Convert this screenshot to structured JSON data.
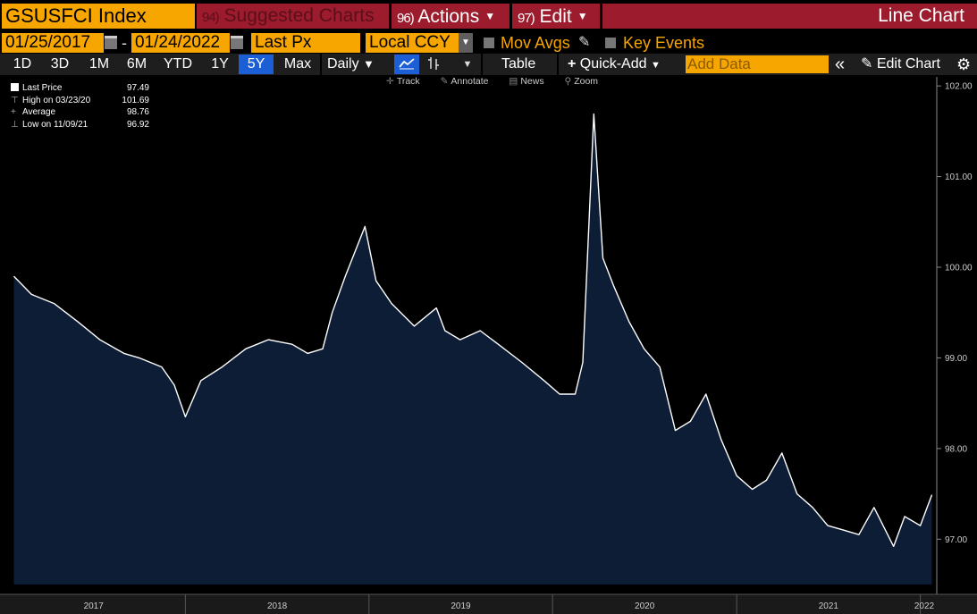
{
  "header": {
    "ticker": "GSUSFCI Index",
    "suggested": {
      "num": "94)",
      "label": "Suggested Charts"
    },
    "actions": {
      "num": "96)",
      "label": "Actions"
    },
    "edit": {
      "num": "97)",
      "label": "Edit"
    },
    "chart_type_title": "Line Chart"
  },
  "settings": {
    "start_date": "01/25/2017",
    "end_date": "01/24/2022",
    "field": "Last Px",
    "currency": "Local CCY",
    "mov_avgs": "Mov Avgs",
    "key_events": "Key Events"
  },
  "toolbar": {
    "periods": [
      "1D",
      "3D",
      "1M",
      "6M",
      "YTD",
      "1Y",
      "5Y",
      "Max"
    ],
    "active_period": "5Y",
    "frequency": "Daily",
    "table": "Table",
    "quick_add": "Quick-Add",
    "add_data_placeholder": "Add Data",
    "edit_chart": "Edit Chart"
  },
  "chart_tools": {
    "track": "Track",
    "annotate": "Annotate",
    "news": "News",
    "zoom": "Zoom"
  },
  "legend": {
    "last_price_label": "Last Price",
    "last_price_value": "97.49",
    "high_label": "High on 03/23/20",
    "high_value": "101.69",
    "average_label": "Average",
    "average_value": "98.76",
    "low_label": "Low on 11/09/21",
    "low_value": "96.92"
  },
  "colors": {
    "accent": "#f7a600",
    "header_red": "#9c1b2c",
    "active_blue": "#1c5ed6",
    "area_fill": "#0d1d36",
    "line": "#ffffff"
  },
  "chart_data": {
    "type": "area",
    "x": [
      "2017-01-25",
      "2017-03-01",
      "2017-04-15",
      "2017-06-01",
      "2017-07-15",
      "2017-09-01",
      "2017-10-01",
      "2017-11-15",
      "2017-12-10",
      "2018-01-01",
      "2018-02-01",
      "2018-03-15",
      "2018-05-01",
      "2018-06-15",
      "2018-08-01",
      "2018-09-01",
      "2018-10-01",
      "2018-10-20",
      "2018-11-15",
      "2018-12-24",
      "2019-01-15",
      "2019-02-15",
      "2019-04-01",
      "2019-05-15",
      "2019-06-01",
      "2019-07-01",
      "2019-08-10",
      "2019-09-15",
      "2019-11-01",
      "2019-12-15",
      "2020-01-15",
      "2020-02-15",
      "2020-03-01",
      "2020-03-23",
      "2020-04-10",
      "2020-05-01",
      "2020-06-01",
      "2020-07-01",
      "2020-08-01",
      "2020-09-01",
      "2020-10-01",
      "2020-11-01",
      "2020-12-01",
      "2021-01-01",
      "2021-02-01",
      "2021-03-01",
      "2021-04-01",
      "2021-05-01",
      "2021-06-01",
      "2021-07-01",
      "2021-08-01",
      "2021-09-01",
      "2021-10-01",
      "2021-11-09",
      "2021-12-01",
      "2022-01-01",
      "2022-01-24"
    ],
    "y": [
      99.9,
      99.7,
      99.6,
      99.4,
      99.2,
      99.05,
      99.0,
      98.9,
      98.7,
      98.35,
      98.75,
      98.9,
      99.1,
      99.2,
      99.15,
      99.05,
      99.1,
      99.5,
      99.9,
      100.45,
      99.85,
      99.6,
      99.35,
      99.55,
      99.3,
      99.2,
      99.3,
      99.15,
      98.95,
      98.75,
      98.6,
      98.6,
      98.95,
      101.69,
      100.1,
      99.8,
      99.4,
      99.1,
      98.9,
      98.2,
      98.3,
      98.6,
      98.1,
      97.7,
      97.55,
      97.65,
      97.95,
      97.5,
      97.35,
      97.15,
      97.1,
      97.05,
      97.35,
      96.92,
      97.25,
      97.15,
      97.49
    ],
    "title": "",
    "xlabel": "",
    "ylabel": "",
    "ylim": [
      96.5,
      102.1
    ],
    "y_ticks": [
      "97.00",
      "98.00",
      "99.00",
      "100.00",
      "101.00",
      "102.00"
    ],
    "x_ticks": [
      "2017",
      "2018",
      "2019",
      "2020",
      "2021",
      "2022"
    ],
    "grid": false,
    "legend_position": "top-left"
  }
}
